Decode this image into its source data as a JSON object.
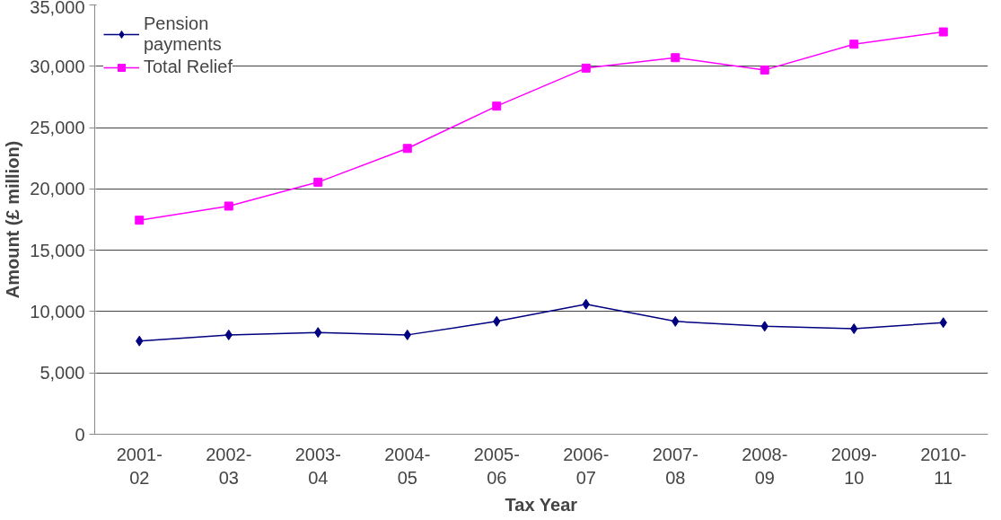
{
  "chart_data": {
    "type": "line",
    "xlabel": "Tax Year",
    "ylabel": "Amount (£ million)",
    "categories": [
      "2001-\n02",
      "2002-\n03",
      "2003-\n04",
      "2004-\n05",
      "2005-\n06",
      "2006-\n07",
      "2007-\n08",
      "2008-\n09",
      "2009-\n10",
      "2010-\n11"
    ],
    "series": [
      {
        "name": "Pension\npayments",
        "color": "#000080",
        "marker": "diamond",
        "values": [
          7600,
          8100,
          8300,
          8100,
          9200,
          10600,
          9200,
          8800,
          8600,
          9100
        ]
      },
      {
        "name": "Total Relief",
        "color": "#ff00ff",
        "marker": "square",
        "values": [
          17450,
          18600,
          20550,
          23300,
          26750,
          29850,
          30700,
          29700,
          31800,
          32800
        ]
      }
    ],
    "ylim": [
      0,
      35000
    ],
    "yticks": [
      {
        "value": 0,
        "label": "0"
      },
      {
        "value": 5000,
        "label": "5,000"
      },
      {
        "value": 10000,
        "label": "10,000"
      },
      {
        "value": 15000,
        "label": "15,000"
      },
      {
        "value": 20000,
        "label": "20,000"
      },
      {
        "value": 25000,
        "label": "25,000"
      },
      {
        "value": 30000,
        "label": "30,000"
      },
      {
        "value": 35000,
        "label": "35,000"
      }
    ],
    "grid": "y",
    "legend": "top left",
    "line_style": "solid"
  }
}
